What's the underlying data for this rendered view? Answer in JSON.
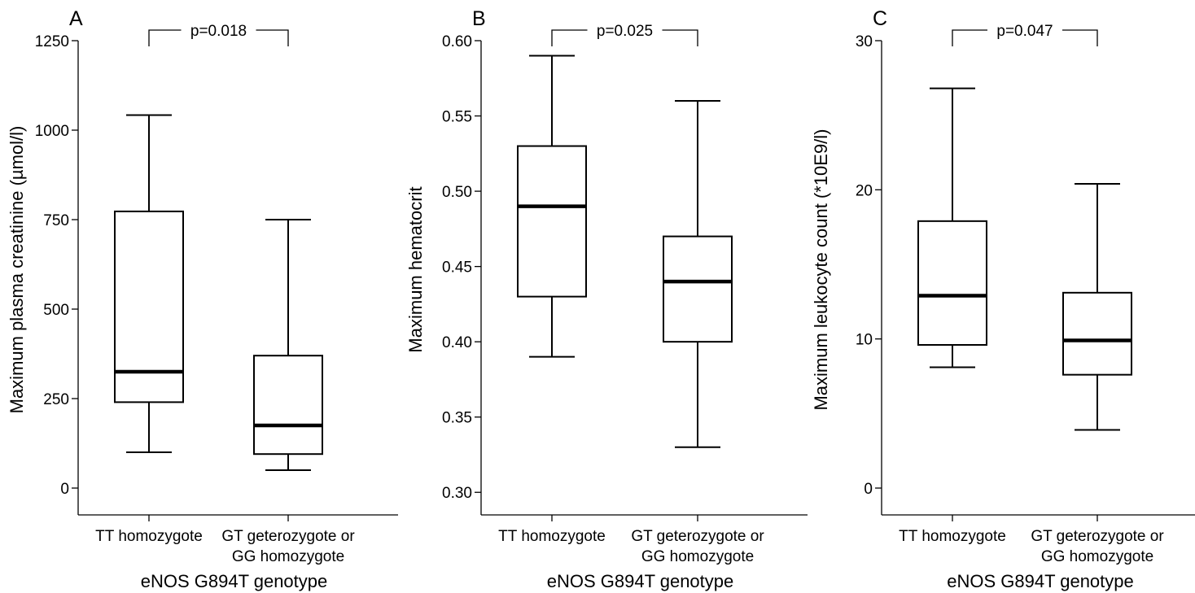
{
  "chart_data": [
    {
      "type": "box",
      "panel_label": "A",
      "ylabel": "Maximum plasma creatinine (µmol/l)",
      "xlabel": "eNOS G894T genotype",
      "ylim": [
        -75,
        1250
      ],
      "y_ticks": [
        0,
        250,
        500,
        750,
        1000,
        1250
      ],
      "categories": [
        {
          "line1": "TT homozygote",
          "line2": ""
        },
        {
          "line1": "GT geterozygote or",
          "line2": "GG homozygote"
        }
      ],
      "boxes": [
        {
          "min": 100,
          "q1": 240,
          "median": 325,
          "q3": 773,
          "max": 1042
        },
        {
          "min": 50,
          "q1": 95,
          "median": 175,
          "q3": 370,
          "max": 750
        }
      ],
      "annotation": {
        "text": "p=0.018",
        "between": [
          0,
          1
        ]
      }
    },
    {
      "type": "box",
      "panel_label": "B",
      "ylabel": "Maximum hematocrit",
      "xlabel": "eNOS G894T genotype",
      "ylim": [
        0.285,
        0.6
      ],
      "y_ticks": [
        "0.30",
        "0.35",
        "0.40",
        "0.45",
        "0.50",
        "0.55",
        "0.60"
      ],
      "categories": [
        {
          "line1": "TT homozygote",
          "line2": ""
        },
        {
          "line1": "GT geterozygote or",
          "line2": "GG homozygote"
        }
      ],
      "boxes": [
        {
          "min": 0.39,
          "q1": 0.43,
          "median": 0.49,
          "q3": 0.53,
          "max": 0.59
        },
        {
          "min": 0.33,
          "q1": 0.4,
          "median": 0.44,
          "q3": 0.47,
          "max": 0.56
        }
      ],
      "annotation": {
        "text": "p=0.025",
        "between": [
          0,
          1
        ]
      }
    },
    {
      "type": "box",
      "panel_label": "C",
      "ylabel": "Maximum leukocyte count (*10E9/l)",
      "xlabel": "eNOS G894T genotype",
      "ylim": [
        -1.8,
        30
      ],
      "y_ticks": [
        0,
        10,
        20,
        30
      ],
      "categories": [
        {
          "line1": "TT homozygote",
          "line2": ""
        },
        {
          "line1": "GT geterozygote or",
          "line2": "GG homozygote"
        }
      ],
      "boxes": [
        {
          "min": 8.1,
          "q1": 9.6,
          "median": 12.9,
          "q3": 17.9,
          "max": 26.8
        },
        {
          "min": 3.9,
          "q1": 7.6,
          "median": 9.9,
          "q3": 13.1,
          "max": 20.4
        }
      ],
      "annotation": {
        "text": "p=0.047",
        "between": [
          0,
          1
        ]
      }
    }
  ]
}
